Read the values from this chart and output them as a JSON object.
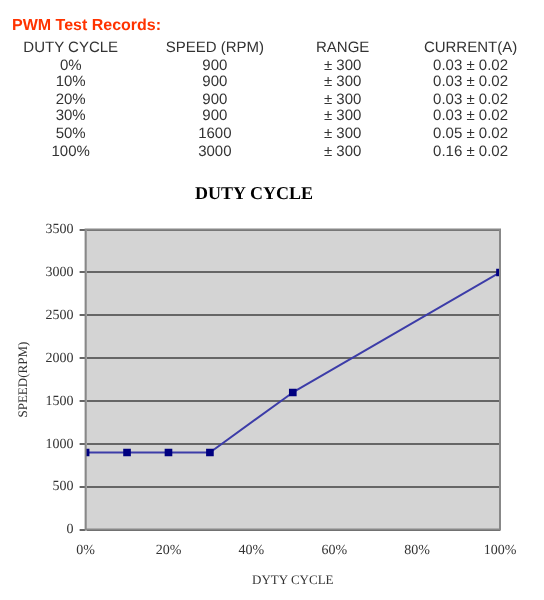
{
  "chart_data": {
    "type": "line",
    "title": "DUTY CYCLE",
    "xlabel": "DYTY CYCLE",
    "ylabel": "SPEED(RPM)",
    "x": [
      0,
      10,
      20,
      30,
      50,
      100
    ],
    "series": [
      {
        "color": "#3c3ca8",
        "values": [
          900,
          900,
          900,
          900,
          1600,
          3000
        ]
      }
    ],
    "xlim": [
      0,
      100
    ],
    "xticks": [
      {
        "value": 0,
        "label": "0%"
      },
      {
        "value": 20,
        "label": "20%"
      },
      {
        "value": 40,
        "label": "40%"
      },
      {
        "value": 60,
        "label": "60%"
      },
      {
        "value": 80,
        "label": "80%"
      },
      {
        "value": 100,
        "label": "100%"
      }
    ],
    "ylim": [
      0,
      3500
    ],
    "yticks": [
      0,
      500,
      1000,
      1500,
      2000,
      2500,
      3000,
      3500
    ],
    "grid": "y",
    "marker": "square",
    "legend": false,
    "annotations": [
      "PWM Test Records:",
      "DUTY CYCLE",
      "SPEED (RPM)",
      "RANGE",
      "CURRENT(A)",
      "0%",
      "900",
      "± 300",
      "0.03 ± 0.02",
      "10%",
      "900",
      "± 300",
      "0.03 ± 0.02",
      "20%",
      "900",
      "± 300",
      "0.03 ± 0.02",
      "30%",
      "900",
      "± 300",
      "0.03 ± 0.02",
      "50%",
      "1600",
      "± 300",
      "0.05 ± 0.02",
      "100%",
      "3000",
      "± 300",
      "0.16 ± 0.02"
    ]
  }
}
